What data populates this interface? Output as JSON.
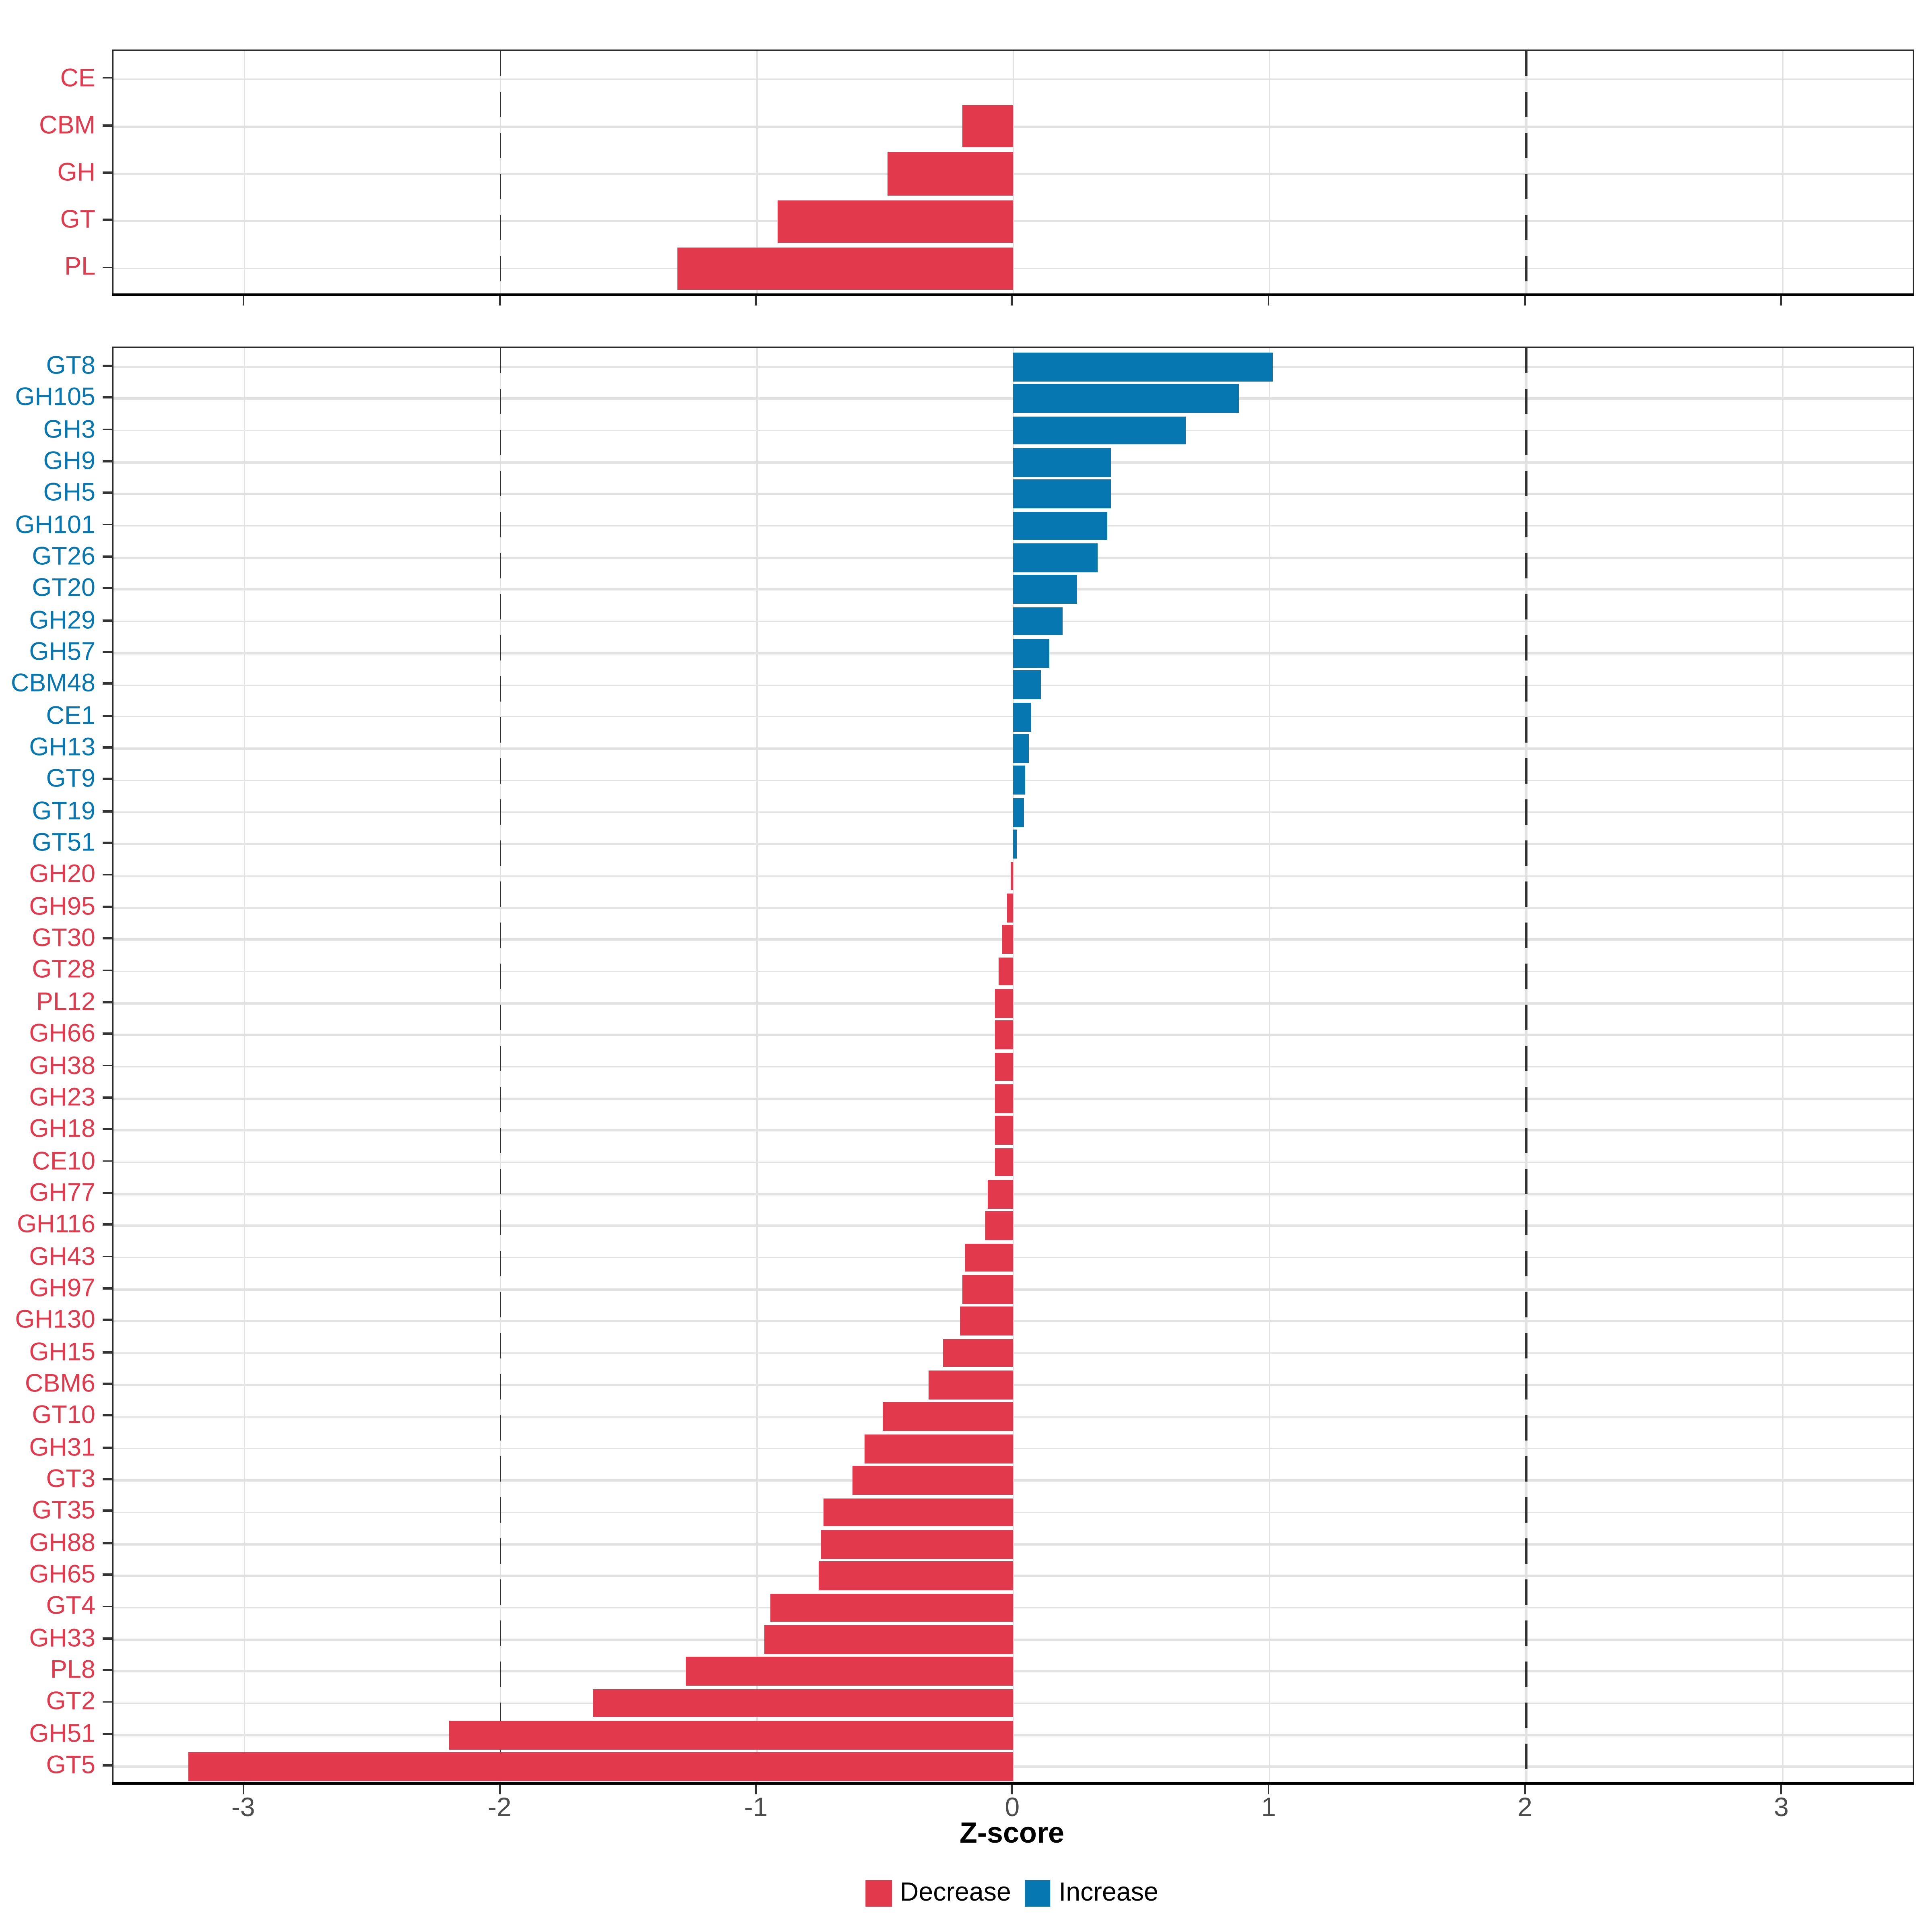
{
  "chart_data": {
    "type": "bar",
    "orientation": "horizontal",
    "xlabel": "Z-score",
    "x_ticks": [
      -3,
      -2,
      -1,
      0,
      1,
      2,
      3
    ],
    "x_tick_labels": [
      "-3",
      "-2",
      "-1",
      "0",
      "1",
      "2",
      "3"
    ],
    "xlim": [
      -3.515,
      3.515
    ],
    "reference_dashed_lines": [
      -2,
      2
    ],
    "grid": true,
    "legend_position": "bottom",
    "panels": [
      {
        "name": "enzyme-class-panel",
        "categories": [
          "CE",
          "CBM",
          "GH",
          "GT",
          "PL"
        ],
        "values": [
          0,
          -0.2,
          -0.49,
          -0.92,
          -1.31
        ]
      },
      {
        "name": "enzyme-family-panel",
        "categories": [
          "GT8",
          "GH105",
          "GH3",
          "GH9",
          "GH5",
          "GH101",
          "GT26",
          "GT20",
          "GH29",
          "GH57",
          "CBM48",
          "CE1",
          "GH13",
          "GT9",
          "GT19",
          "GT51",
          "GH20",
          "GH95",
          "GT30",
          "GT28",
          "PL12",
          "GH66",
          "GH38",
          "GH23",
          "GH18",
          "CE10",
          "GH77",
          "GH116",
          "GH43",
          "GH97",
          "GH130",
          "GH15",
          "CBM6",
          "GT10",
          "GH31",
          "GT3",
          "GT35",
          "GH88",
          "GH65",
          "GT4",
          "GH33",
          "PL8",
          "GT2",
          "GH51",
          "GT5"
        ],
        "values": [
          1.01,
          0.88,
          0.67,
          0.38,
          0.38,
          0.365,
          0.33,
          0.25,
          0.19,
          0.14,
          0.107,
          0.071,
          0.058,
          0.045,
          0.04,
          0.012,
          -0.012,
          -0.025,
          -0.045,
          -0.058,
          -0.07,
          -0.071,
          -0.071,
          -0.072,
          -0.072,
          -0.072,
          -0.1,
          -0.108,
          -0.19,
          -0.2,
          -0.21,
          -0.275,
          -0.33,
          -0.51,
          -0.58,
          -0.63,
          -0.74,
          -0.75,
          -0.76,
          -0.95,
          -0.97,
          -1.28,
          -1.64,
          -2.2,
          -3.22
        ]
      }
    ],
    "legend": {
      "items": [
        {
          "label": "Decrease",
          "key": "decrease"
        },
        {
          "label": "Increase",
          "key": "increase"
        }
      ]
    }
  },
  "colors": {
    "decrease": "#e3394d",
    "increase": "#0777b1",
    "grid": "#e2e2e2",
    "dashed_line": "#333333",
    "tick_text": "#4d4d4d",
    "panel_border": "#2b2b2b"
  }
}
